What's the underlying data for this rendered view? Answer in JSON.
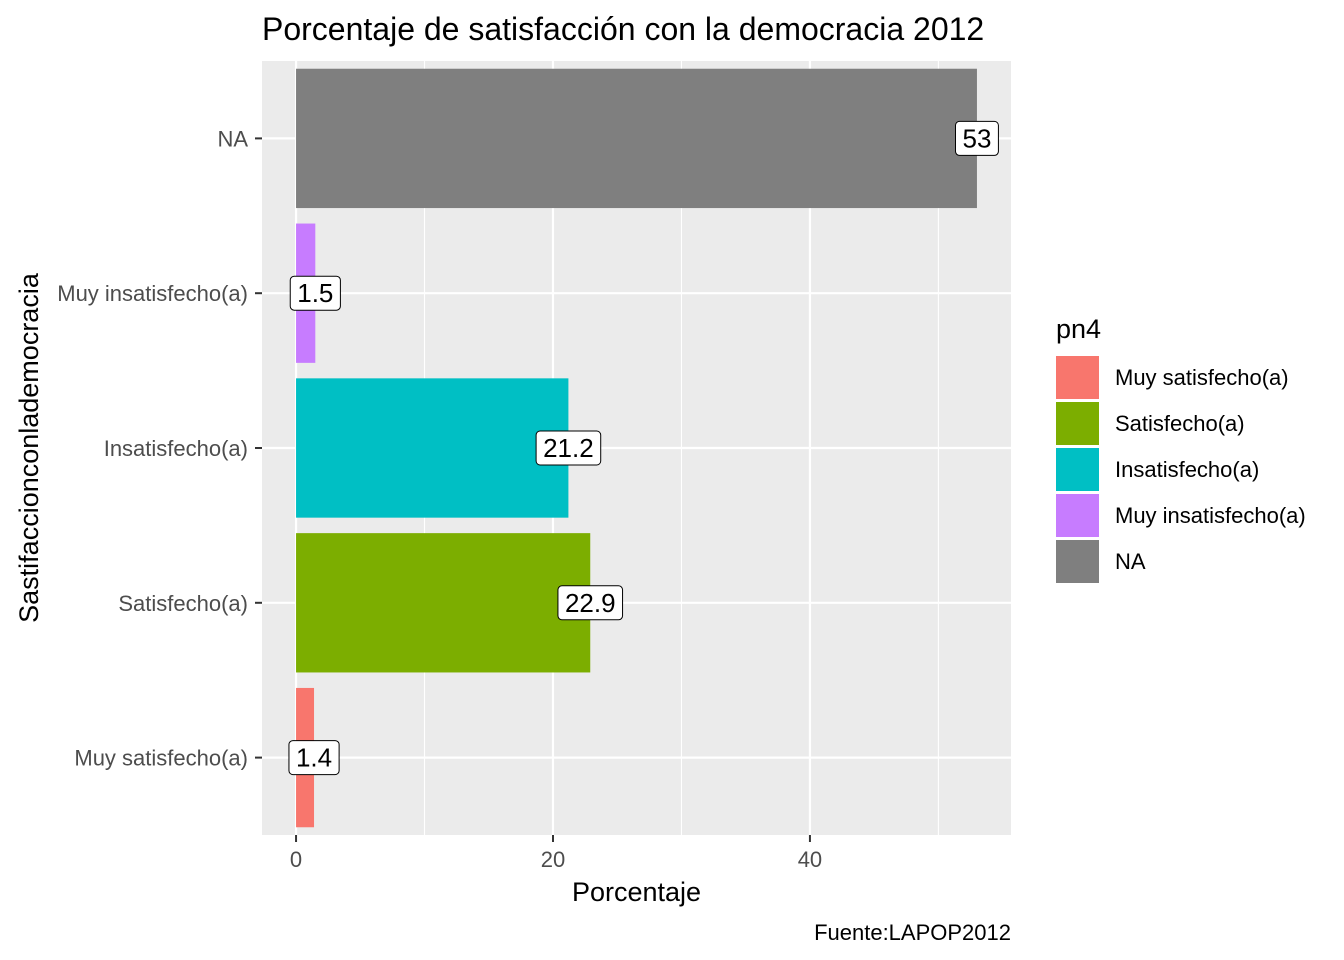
{
  "chart_data": {
    "type": "bar",
    "orientation": "horizontal",
    "title": "Porcentaje de satisfacción con la democracia 2012",
    "xlabel": "Porcentaje",
    "ylabel": "Sastifaccionconlademocracia",
    "caption": "Fuente:LAPOP2012",
    "categories": [
      "Muy satisfecho(a)",
      "Satisfecho(a)",
      "Insatisfecho(a)",
      "Muy insatisfecho(a)",
      "NA"
    ],
    "values": [
      1.4,
      22.9,
      21.2,
      1.5,
      53
    ],
    "data_labels": [
      "1.4",
      "22.9",
      "21.2",
      "1.5",
      "53"
    ],
    "colors": [
      "#F8766D",
      "#7CAE00",
      "#00BFC4",
      "#C77CFF",
      "#7F7F7F"
    ],
    "xlim": [
      -2.65,
      55.65
    ],
    "x_ticks": [
      0,
      20,
      40
    ],
    "x_minor_ticks": [
      10,
      30,
      50
    ],
    "grid": true,
    "panel_background": "#EBEBEB",
    "legend": {
      "title": "pn4",
      "position": "right",
      "entries": [
        "Muy satisfecho(a)",
        "Satisfecho(a)",
        "Insatisfecho(a)",
        "Muy insatisfecho(a)",
        "NA"
      ]
    }
  }
}
